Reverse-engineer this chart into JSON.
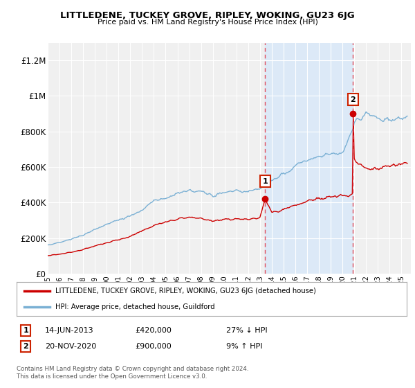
{
  "title": "LITTLEDENE, TUCKEY GROVE, RIPLEY, WOKING, GU23 6JG",
  "subtitle": "Price paid vs. HM Land Registry's House Price Index (HPI)",
  "xlim_start": 1995.0,
  "xlim_end": 2025.8,
  "ylim": [
    0,
    1300000
  ],
  "yticks": [
    0,
    200000,
    400000,
    600000,
    800000,
    1000000,
    1200000
  ],
  "ytick_labels": [
    "£0",
    "£200K",
    "£400K",
    "£600K",
    "£800K",
    "£1M",
    "£1.2M"
  ],
  "xticks": [
    1995,
    1996,
    1997,
    1998,
    1999,
    2000,
    2001,
    2002,
    2003,
    2004,
    2005,
    2006,
    2007,
    2008,
    2009,
    2010,
    2011,
    2012,
    2013,
    2014,
    2015,
    2016,
    2017,
    2018,
    2019,
    2020,
    2021,
    2022,
    2023,
    2024,
    2025
  ],
  "background_color": "#ffffff",
  "plot_bg_color": "#f0f0f0",
  "shade_color": "#dce9f7",
  "vline_color": "#e05060",
  "marker1_year": 2013.45,
  "marker1_price": 420000,
  "marker2_year": 2020.9,
  "marker2_price": 900000,
  "legend_line1": "LITTLEDENE, TUCKEY GROVE, RIPLEY, WOKING, GU23 6JG (detached house)",
  "legend_line2": "HPI: Average price, detached house, Guildford",
  "line_color_red": "#cc0000",
  "line_color_blue": "#7ab0d4",
  "annotation1_date": "14-JUN-2013",
  "annotation1_price": "£420,000",
  "annotation1_hpi": "27% ↓ HPI",
  "annotation2_date": "20-NOV-2020",
  "annotation2_price": "£900,000",
  "annotation2_hpi": "9% ↑ HPI",
  "footer": "Contains HM Land Registry data © Crown copyright and database right 2024.\nThis data is licensed under the Open Government Licence v3.0.",
  "noise_seed": 42
}
